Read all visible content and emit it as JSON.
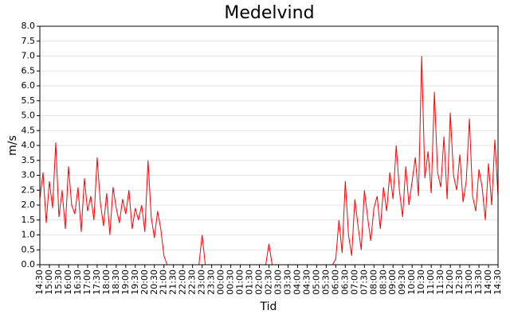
{
  "chart_data": {
    "type": "line",
    "title": "Medelvind",
    "x_label": "Tid",
    "y_label": "m/s",
    "color": "#ff0000",
    "grid": true,
    "ylim": [
      0,
      8
    ],
    "yticks": [
      {
        "value": 0,
        "label": "0.0"
      },
      {
        "value": 0.5,
        "label": "0.5"
      },
      {
        "value": 1,
        "label": "1.0"
      },
      {
        "value": 1.5,
        "label": "1.5"
      },
      {
        "value": 2,
        "label": "2.0"
      },
      {
        "value": 2.5,
        "label": "2.5"
      },
      {
        "value": 3,
        "label": "3.0"
      },
      {
        "value": 3.5,
        "label": "3.5"
      },
      {
        "value": 4,
        "label": "4.0"
      },
      {
        "value": 4.5,
        "label": "4.5"
      },
      {
        "value": 5,
        "label": "5.0"
      },
      {
        "value": 5.5,
        "label": "5.5"
      },
      {
        "value": 6,
        "label": "6.0"
      },
      {
        "value": 6.5,
        "label": "6.5"
      },
      {
        "value": 7,
        "label": "7.0"
      },
      {
        "value": 7.5,
        "label": "7.5"
      },
      {
        "value": 8,
        "label": "8.0"
      }
    ],
    "categories": [
      "14:30",
      null,
      null,
      "15:00",
      null,
      null,
      "15:30",
      null,
      null,
      "16:00",
      null,
      null,
      "16:30",
      null,
      null,
      "17:00",
      null,
      null,
      "17:30",
      null,
      null,
      "18:00",
      null,
      null,
      "18:30",
      null,
      null,
      "19:00",
      null,
      null,
      "19:30",
      null,
      null,
      "20:00",
      null,
      null,
      "20:30",
      null,
      null,
      "21:00",
      null,
      null,
      "21:30",
      null,
      null,
      "22:00",
      null,
      null,
      "22:30",
      null,
      null,
      "23:00",
      null,
      null,
      "23:30",
      null,
      null,
      "00:00",
      null,
      null,
      "00:30",
      null,
      null,
      "01:00",
      null,
      null,
      "01:30",
      null,
      null,
      "02:00",
      null,
      null,
      "02:30",
      null,
      null,
      "03:00",
      null,
      null,
      "03:30",
      null,
      null,
      "04:00",
      null,
      null,
      "04:30",
      null,
      null,
      "05:00",
      null,
      null,
      "05:30",
      null,
      null,
      "06:00",
      null,
      null,
      "06:30",
      null,
      null,
      "07:00",
      null,
      null,
      "07:30",
      null,
      null,
      "08:00",
      null,
      null,
      "08:30",
      null,
      null,
      "09:00",
      null,
      null,
      "09:30",
      null,
      null,
      "10:00",
      null,
      null,
      "10:30",
      null,
      null,
      "11:00",
      null,
      null,
      "11:30",
      null,
      null,
      "12:00",
      null,
      null,
      "12:30",
      null,
      null,
      "13:00",
      null,
      null,
      "13:30",
      null,
      null,
      "14:00",
      null,
      null,
      "14:30"
    ],
    "values": [
      2.2,
      3.1,
      1.4,
      2.8,
      1.9,
      4.1,
      1.6,
      2.5,
      1.2,
      3.3,
      2.0,
      1.7,
      2.6,
      1.1,
      2.9,
      1.8,
      2.3,
      1.5,
      3.6,
      2.1,
      1.3,
      2.4,
      1.0,
      2.6,
      1.9,
      1.4,
      2.2,
      1.7,
      2.5,
      1.2,
      1.9,
      1.5,
      2.0,
      1.1,
      3.5,
      1.6,
      0.9,
      1.8,
      1.2,
      0.3,
      0,
      0,
      0,
      0,
      0,
      0,
      0,
      0,
      0,
      0,
      0,
      1.0,
      0,
      0,
      0,
      0,
      0,
      0,
      0,
      0,
      0,
      0,
      0,
      0,
      0,
      0,
      0,
      0,
      0,
      0,
      0,
      0,
      0.7,
      0,
      0,
      0,
      0,
      0,
      0,
      0,
      0,
      0,
      0,
      0,
      0,
      0,
      0,
      0,
      0,
      0,
      0,
      0,
      0,
      0.2,
      1.5,
      0.4,
      2.8,
      1.0,
      0.3,
      2.2,
      1.3,
      0.5,
      2.5,
      1.6,
      0.8,
      1.9,
      2.3,
      1.2,
      2.6,
      1.8,
      3.1,
      2.2,
      4.0,
      2.5,
      1.6,
      3.3,
      2.0,
      2.8,
      3.6,
      2.3,
      7.0,
      2.9,
      3.8,
      2.4,
      5.8,
      3.1,
      2.6,
      4.3,
      2.2,
      5.1,
      3.0,
      2.5,
      3.7,
      2.1,
      2.8,
      4.9,
      2.3,
      1.8,
      3.2,
      2.6,
      1.5,
      3.4,
      2.0,
      4.2,
      2.3
    ]
  }
}
